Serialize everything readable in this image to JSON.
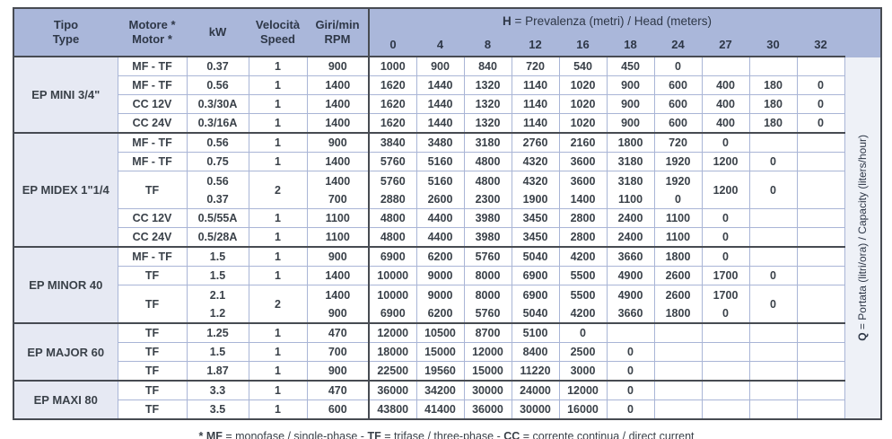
{
  "colors": {
    "header_blue": "#aab7da",
    "tipo_column_bg": "#e6e9f3",
    "q_column_bg": "#eef1f7",
    "grid_light": "#a9b5d6",
    "grid_dark": "#474b52",
    "text": "#3a4149"
  },
  "table": {
    "columns": {
      "tipo": [
        "Tipo",
        "Type"
      ],
      "motore": [
        "Motore *",
        "Motor *"
      ],
      "kw": "kW",
      "velocita": [
        "Velocità",
        "Speed"
      ],
      "giri": [
        "Giri/min",
        "RPM"
      ]
    },
    "head": {
      "title_prefix": "H",
      "title_rest": " = Prevalenza (metri) / Head (meters)",
      "values": [
        "0",
        "4",
        "8",
        "12",
        "16",
        "18",
        "24",
        "27",
        "30",
        "32"
      ]
    },
    "q_label": {
      "prefix": "Q",
      "rest": " = Portata (litri/ora) / Capacity (liters/hour)"
    },
    "groups": [
      {
        "tipo": "EP MINI 3/4\"",
        "rows": [
          {
            "motore": "MF - TF",
            "kw": [
              "0.37"
            ],
            "speed": "1",
            "rpm": [
              "900"
            ],
            "data": [
              [
                "1000"
              ],
              [
                "900"
              ],
              [
                "840"
              ],
              [
                "720"
              ],
              [
                "540"
              ],
              [
                "450"
              ],
              [
                "0"
              ],
              [
                ""
              ],
              [
                ""
              ],
              [
                ""
              ]
            ]
          },
          {
            "motore": "MF - TF",
            "kw": [
              "0.56"
            ],
            "speed": "1",
            "rpm": [
              "1400"
            ],
            "data": [
              [
                "1620"
              ],
              [
                "1440"
              ],
              [
                "1320"
              ],
              [
                "1140"
              ],
              [
                "1020"
              ],
              [
                "900"
              ],
              [
                "600"
              ],
              [
                "400"
              ],
              [
                "180"
              ],
              [
                "0"
              ]
            ]
          },
          {
            "motore": "CC 12V",
            "kw": [
              "0.3/30A"
            ],
            "speed": "1",
            "rpm": [
              "1400"
            ],
            "data": [
              [
                "1620"
              ],
              [
                "1440"
              ],
              [
                "1320"
              ],
              [
                "1140"
              ],
              [
                "1020"
              ],
              [
                "900"
              ],
              [
                "600"
              ],
              [
                "400"
              ],
              [
                "180"
              ],
              [
                "0"
              ]
            ]
          },
          {
            "motore": "CC 24V",
            "kw": [
              "0.3/16A"
            ],
            "speed": "1",
            "rpm": [
              "1400"
            ],
            "data": [
              [
                "1620"
              ],
              [
                "1440"
              ],
              [
                "1320"
              ],
              [
                "1140"
              ],
              [
                "1020"
              ],
              [
                "900"
              ],
              [
                "600"
              ],
              [
                "400"
              ],
              [
                "180"
              ],
              [
                "0"
              ]
            ]
          }
        ]
      },
      {
        "tipo": "EP MIDEX 1\"1/4",
        "rows": [
          {
            "motore": "MF - TF",
            "kw": [
              "0.56"
            ],
            "speed": "1",
            "rpm": [
              "900"
            ],
            "data": [
              [
                "3840"
              ],
              [
                "3480"
              ],
              [
                "3180"
              ],
              [
                "2760"
              ],
              [
                "2160"
              ],
              [
                "1800"
              ],
              [
                "720"
              ],
              [
                "0"
              ],
              [
                ""
              ],
              [
                ""
              ]
            ]
          },
          {
            "motore": "MF - TF",
            "kw": [
              "0.75"
            ],
            "speed": "1",
            "rpm": [
              "1400"
            ],
            "data": [
              [
                "5760"
              ],
              [
                "5160"
              ],
              [
                "4800"
              ],
              [
                "4320"
              ],
              [
                "3600"
              ],
              [
                "3180"
              ],
              [
                "1920"
              ],
              [
                "1200"
              ],
              [
                "0"
              ],
              [
                ""
              ]
            ]
          },
          {
            "motore": "TF",
            "kw": [
              "0.56",
              "0.37"
            ],
            "speed": "2",
            "rpm": [
              "1400",
              "700"
            ],
            "data": [
              [
                "5760",
                "2880"
              ],
              [
                "5160",
                "2600"
              ],
              [
                "4800",
                "2300"
              ],
              [
                "4320",
                "1900"
              ],
              [
                "3600",
                "1400"
              ],
              [
                "3180",
                "1100"
              ],
              [
                "1920",
                "0"
              ],
              [
                "1200",
                ""
              ],
              [
                "0",
                ""
              ],
              [
                "",
                ""
              ]
            ]
          },
          {
            "motore": "CC 12V",
            "kw": [
              "0.5/55A"
            ],
            "speed": "1",
            "rpm": [
              "1100"
            ],
            "data": [
              [
                "4800"
              ],
              [
                "4400"
              ],
              [
                "3980"
              ],
              [
                "3450"
              ],
              [
                "2800"
              ],
              [
                "2400"
              ],
              [
                "1100"
              ],
              [
                "0"
              ],
              [
                ""
              ],
              [
                ""
              ]
            ]
          },
          {
            "motore": "CC 24V",
            "kw": [
              "0.5/28A"
            ],
            "speed": "1",
            "rpm": [
              "1100"
            ],
            "data": [
              [
                "4800"
              ],
              [
                "4400"
              ],
              [
                "3980"
              ],
              [
                "3450"
              ],
              [
                "2800"
              ],
              [
                "2400"
              ],
              [
                "1100"
              ],
              [
                "0"
              ],
              [
                ""
              ],
              [
                ""
              ]
            ]
          }
        ]
      },
      {
        "tipo": "EP MINOR 40",
        "rows": [
          {
            "motore": "MF - TF",
            "kw": [
              "1.5"
            ],
            "speed": "1",
            "rpm": [
              "900"
            ],
            "data": [
              [
                "6900"
              ],
              [
                "6200"
              ],
              [
                "5760"
              ],
              [
                "5040"
              ],
              [
                "4200"
              ],
              [
                "3660"
              ],
              [
                "1800"
              ],
              [
                "0"
              ],
              [
                ""
              ],
              [
                ""
              ]
            ]
          },
          {
            "motore": "TF",
            "kw": [
              "1.5"
            ],
            "speed": "1",
            "rpm": [
              "1400"
            ],
            "data": [
              [
                "10000"
              ],
              [
                "9000"
              ],
              [
                "8000"
              ],
              [
                "6900"
              ],
              [
                "5500"
              ],
              [
                "4900"
              ],
              [
                "2600"
              ],
              [
                "1700"
              ],
              [
                "0"
              ],
              [
                ""
              ]
            ]
          },
          {
            "motore": "TF",
            "kw": [
              "2.1",
              "1.2"
            ],
            "speed": "2",
            "rpm": [
              "1400",
              "900"
            ],
            "data": [
              [
                "10000",
                "6900"
              ],
              [
                "9000",
                "6200"
              ],
              [
                "8000",
                "5760"
              ],
              [
                "6900",
                "5040"
              ],
              [
                "5500",
                "4200"
              ],
              [
                "4900",
                "3660"
              ],
              [
                "2600",
                "1800"
              ],
              [
                "1700",
                "0"
              ],
              [
                "0",
                ""
              ],
              [
                "",
                ""
              ]
            ]
          }
        ]
      },
      {
        "tipo": "EP MAJOR 60",
        "rows": [
          {
            "motore": "TF",
            "kw": [
              "1.25"
            ],
            "speed": "1",
            "rpm": [
              "470"
            ],
            "data": [
              [
                "12000"
              ],
              [
                "10500"
              ],
              [
                "8700"
              ],
              [
                "5100"
              ],
              [
                "0"
              ],
              [
                ""
              ],
              [
                ""
              ],
              [
                ""
              ],
              [
                ""
              ],
              [
                ""
              ]
            ]
          },
          {
            "motore": "TF",
            "kw": [
              "1.5"
            ],
            "speed": "1",
            "rpm": [
              "700"
            ],
            "data": [
              [
                "18000"
              ],
              [
                "15000"
              ],
              [
                "12000"
              ],
              [
                "8400"
              ],
              [
                "2500"
              ],
              [
                "0"
              ],
              [
                ""
              ],
              [
                ""
              ],
              [
                ""
              ],
              [
                ""
              ]
            ]
          },
          {
            "motore": "TF",
            "kw": [
              "1.87"
            ],
            "speed": "1",
            "rpm": [
              "900"
            ],
            "data": [
              [
                "22500"
              ],
              [
                "19560"
              ],
              [
                "15000"
              ],
              [
                "11220"
              ],
              [
                "3000"
              ],
              [
                "0"
              ],
              [
                ""
              ],
              [
                ""
              ],
              [
                ""
              ],
              [
                ""
              ]
            ]
          }
        ]
      },
      {
        "tipo": "EP MAXI 80",
        "rows": [
          {
            "motore": "TF",
            "kw": [
              "3.3"
            ],
            "speed": "1",
            "rpm": [
              "470"
            ],
            "data": [
              [
                "36000"
              ],
              [
                "34200"
              ],
              [
                "30000"
              ],
              [
                "24000"
              ],
              [
                "12000"
              ],
              [
                "0"
              ],
              [
                ""
              ],
              [
                ""
              ],
              [
                ""
              ],
              [
                ""
              ]
            ]
          },
          {
            "motore": "TF",
            "kw": [
              "3.5"
            ],
            "speed": "1",
            "rpm": [
              "600"
            ],
            "data": [
              [
                "43800"
              ],
              [
                "41400"
              ],
              [
                "36000"
              ],
              [
                "30000"
              ],
              [
                "16000"
              ],
              [
                "0"
              ],
              [
                ""
              ],
              [
                ""
              ],
              [
                ""
              ],
              [
                ""
              ]
            ]
          }
        ]
      }
    ]
  },
  "footnote": {
    "segments": [
      {
        "bold": true,
        "text": "* MF"
      },
      {
        "bold": false,
        "text": " = monofase / single-phase - "
      },
      {
        "bold": true,
        "text": "TF"
      },
      {
        "bold": false,
        "text": " = trifase / three-phase - "
      },
      {
        "bold": true,
        "text": "CC"
      },
      {
        "bold": false,
        "text": " = corrente continua / direct current"
      }
    ]
  }
}
